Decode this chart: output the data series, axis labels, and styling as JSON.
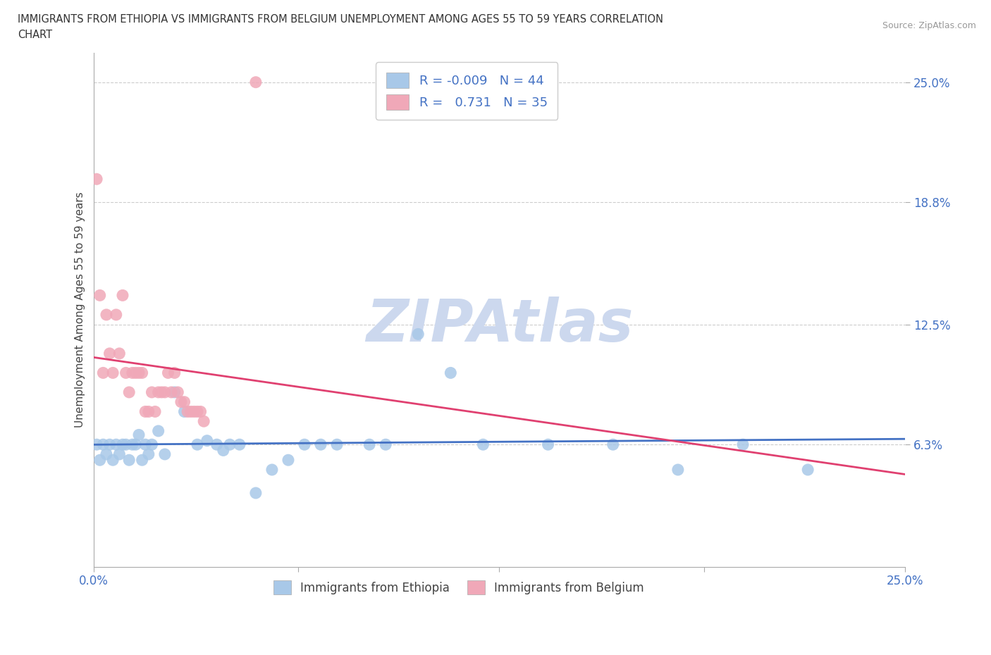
{
  "title_line1": "IMMIGRANTS FROM ETHIOPIA VS IMMIGRANTS FROM BELGIUM UNEMPLOYMENT AMONG AGES 55 TO 59 YEARS CORRELATION",
  "title_line2": "CHART",
  "source_text": "Source: ZipAtlas.com",
  "ylabel": "Unemployment Among Ages 55 to 59 years",
  "xlim": [
    0.0,
    0.25
  ],
  "ylim": [
    0.0,
    0.265
  ],
  "r_ethiopia": -0.009,
  "n_ethiopia": 44,
  "r_belgium": 0.731,
  "n_belgium": 35,
  "ethiopia_color": "#a8c8e8",
  "belgium_color": "#f0a8b8",
  "ethiopia_line_color": "#4472c4",
  "belgium_line_color": "#e04070",
  "watermark_color": "#ccd8ee",
  "eth_x": [
    0.001,
    0.002,
    0.003,
    0.004,
    0.005,
    0.006,
    0.007,
    0.008,
    0.009,
    0.01,
    0.011,
    0.012,
    0.013,
    0.014,
    0.015,
    0.016,
    0.017,
    0.018,
    0.02,
    0.022,
    0.025,
    0.028,
    0.032,
    0.035,
    0.038,
    0.04,
    0.042,
    0.045,
    0.05,
    0.055,
    0.06,
    0.065,
    0.07,
    0.075,
    0.085,
    0.09,
    0.1,
    0.11,
    0.12,
    0.14,
    0.16,
    0.18,
    0.2,
    0.22
  ],
  "eth_y": [
    0.063,
    0.055,
    0.063,
    0.058,
    0.063,
    0.055,
    0.063,
    0.058,
    0.063,
    0.063,
    0.055,
    0.063,
    0.063,
    0.068,
    0.055,
    0.063,
    0.058,
    0.063,
    0.07,
    0.058,
    0.09,
    0.08,
    0.063,
    0.065,
    0.063,
    0.06,
    0.063,
    0.063,
    0.038,
    0.05,
    0.055,
    0.063,
    0.063,
    0.063,
    0.063,
    0.063,
    0.12,
    0.1,
    0.063,
    0.063,
    0.063,
    0.05,
    0.063,
    0.05
  ],
  "bel_x": [
    0.001,
    0.002,
    0.003,
    0.004,
    0.005,
    0.006,
    0.007,
    0.008,
    0.009,
    0.01,
    0.011,
    0.012,
    0.013,
    0.014,
    0.015,
    0.016,
    0.017,
    0.018,
    0.019,
    0.02,
    0.021,
    0.022,
    0.023,
    0.024,
    0.025,
    0.026,
    0.027,
    0.028,
    0.029,
    0.03,
    0.031,
    0.032,
    0.033,
    0.034,
    0.05
  ],
  "bel_y": [
    0.2,
    0.14,
    0.1,
    0.13,
    0.11,
    0.1,
    0.13,
    0.11,
    0.14,
    0.1,
    0.09,
    0.1,
    0.1,
    0.1,
    0.1,
    0.08,
    0.08,
    0.09,
    0.08,
    0.09,
    0.09,
    0.09,
    0.1,
    0.09,
    0.1,
    0.09,
    0.085,
    0.085,
    0.08,
    0.08,
    0.08,
    0.08,
    0.08,
    0.075,
    0.25
  ]
}
